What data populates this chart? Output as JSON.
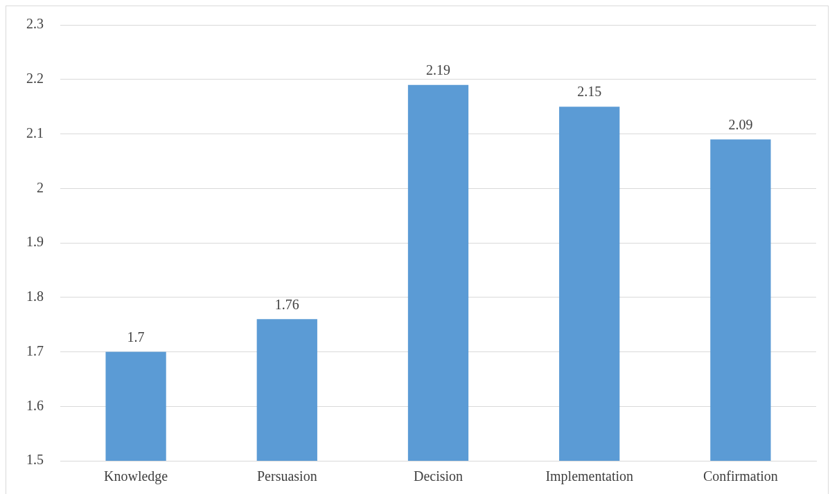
{
  "chart_data": {
    "type": "bar",
    "categories": [
      "Knowledge",
      "Persuasion",
      "Decision",
      "Implementation",
      "Confirmation"
    ],
    "values": [
      1.7,
      1.76,
      2.19,
      2.15,
      2.09
    ],
    "color": "#5b9bd5",
    "ylim": [
      1.5,
      2.3
    ],
    "yticks": [
      1.5,
      1.6,
      1.7,
      1.8,
      1.9,
      2,
      2.1,
      2.2,
      2.3
    ],
    "grid": "y",
    "data_labels": true,
    "legend": false
  }
}
